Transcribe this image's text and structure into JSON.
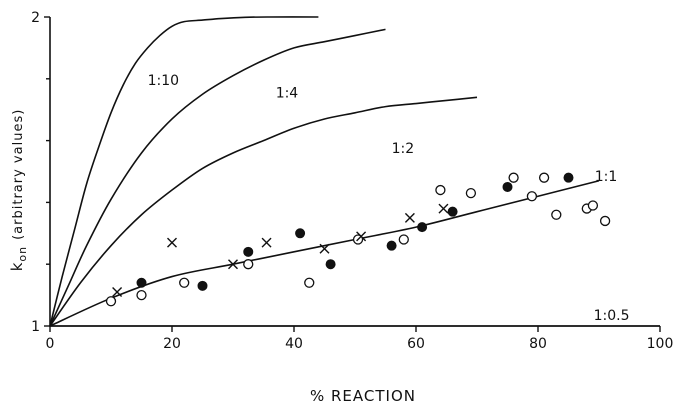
{
  "chart_data": {
    "type": "scatter",
    "title": "",
    "xlabel": "% REACTION",
    "ylabel_main": "k",
    "ylabel_sub": "on",
    "ylabel_note": "(arbitrary values)",
    "xlim": [
      0,
      100
    ],
    "ylim": [
      1,
      2
    ],
    "x_ticks": [
      0,
      20,
      40,
      60,
      80,
      100
    ],
    "x_tick_labels": [
      "0",
      "20",
      "40",
      "60",
      "80",
      "100"
    ],
    "y_ticks": [
      1,
      2
    ],
    "y_tick_labels": [
      "1",
      "2"
    ],
    "y_minor_ticks": [
      1.2,
      1.4,
      1.6,
      1.8
    ],
    "grid": false,
    "curves": [
      {
        "label": "1:10",
        "x": [
          0,
          2,
          4,
          6,
          8,
          10,
          12,
          14,
          16,
          18,
          20,
          22,
          25,
          28,
          32,
          36,
          44
        ],
        "y": [
          1.0,
          1.16,
          1.31,
          1.46,
          1.58,
          1.69,
          1.78,
          1.85,
          1.9,
          1.94,
          1.97,
          1.985,
          1.99,
          1.995,
          1.999,
          2.0,
          2.0
        ]
      },
      {
        "label": "1:4",
        "x": [
          0,
          3,
          6,
          10,
          15,
          20,
          25,
          30,
          35,
          40,
          45,
          50,
          55
        ],
        "y": [
          1.0,
          1.13,
          1.26,
          1.41,
          1.56,
          1.67,
          1.75,
          1.81,
          1.86,
          1.9,
          1.92,
          1.94,
          1.96
        ]
      },
      {
        "label": "1:2",
        "x": [
          0,
          5,
          10,
          15,
          20,
          25,
          30,
          35,
          40,
          45,
          50,
          55,
          60,
          65,
          70
        ],
        "y": [
          1.0,
          1.14,
          1.26,
          1.36,
          1.44,
          1.51,
          1.56,
          1.6,
          1.64,
          1.67,
          1.69,
          1.71,
          1.72,
          1.73,
          1.74
        ]
      },
      {
        "label": "1:1",
        "x": [
          0,
          10,
          20,
          30,
          40,
          50,
          60,
          70,
          80,
          90
        ],
        "y": [
          1.0,
          1.09,
          1.16,
          1.2,
          1.24,
          1.28,
          1.32,
          1.37,
          1.42,
          1.47
        ]
      },
      {
        "label": "1:0.5",
        "x": [
          0,
          100
        ],
        "y": [
          1.0,
          1.0
        ]
      }
    ],
    "series": [
      {
        "marker": "open-circle",
        "x": [
          10,
          15,
          22,
          32.5,
          42.5,
          50.5,
          58,
          64,
          69,
          76,
          79,
          81,
          83,
          88,
          89,
          91
        ],
        "y": [
          1.08,
          1.1,
          1.14,
          1.2,
          1.14,
          1.28,
          1.28,
          1.44,
          1.43,
          1.48,
          1.42,
          1.48,
          1.36,
          1.38,
          1.39,
          1.34
        ]
      },
      {
        "marker": "filled-circle",
        "x": [
          15,
          25,
          32.5,
          41,
          46,
          56,
          61,
          66,
          75,
          85
        ],
        "y": [
          1.14,
          1.13,
          1.24,
          1.3,
          1.2,
          1.26,
          1.32,
          1.37,
          1.45,
          1.48
        ]
      },
      {
        "marker": "cross",
        "x": [
          11,
          20,
          30,
          35.5,
          45,
          51,
          59,
          64.5
        ],
        "y": [
          1.11,
          1.27,
          1.2,
          1.27,
          1.25,
          1.29,
          1.35,
          1.38
        ]
      }
    ]
  }
}
